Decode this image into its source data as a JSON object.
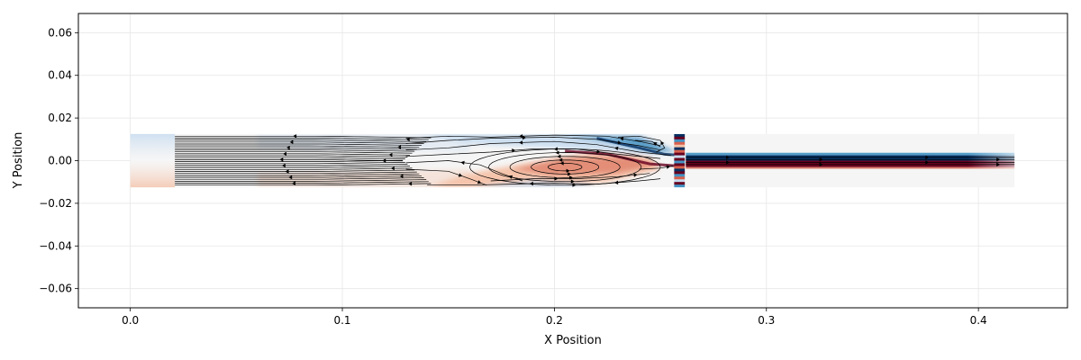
{
  "chart_data": {
    "type": "heatmap",
    "title": "",
    "xlabel": "X Position",
    "ylabel": "Y Position",
    "xlim": [
      -0.0245,
      0.442
    ],
    "ylim": [
      -0.069,
      0.069
    ],
    "xticks": [
      0.0,
      0.1,
      0.2,
      0.3,
      0.4
    ],
    "xtick_labels": [
      "0.0",
      "0.1",
      "0.2",
      "0.3",
      "0.4"
    ],
    "yticks": [
      -0.06,
      -0.04,
      -0.02,
      0.0,
      0.02,
      0.04,
      0.06
    ],
    "ytick_labels": [
      "−0.06",
      "−0.04",
      "−0.02",
      "0.00",
      "0.02",
      "0.04",
      "0.06"
    ],
    "grid": true,
    "colormap": "RdBu",
    "background_color": "#f5f5f5",
    "field_domain": {
      "x": [
        0.0,
        0.417
      ],
      "y": [
        -0.0125,
        0.0125
      ]
    },
    "streamline_domain": {
      "x": [
        0.021,
        0.262
      ],
      "y": [
        -0.0125,
        0.0125
      ]
    },
    "jet": {
      "x": [
        0.262,
        0.417
      ],
      "y_upper": 0.0025,
      "y_lower": -0.003
    },
    "vortex_center": [
      0.205,
      -0.003
    ],
    "colors": {
      "strong_red": "#67001f",
      "red": "#d6604d",
      "light_red": "#f4c2a8",
      "strong_blue": "#053061",
      "blue": "#4393c3",
      "light_blue": "#c6dbef",
      "streamline": "#000000"
    }
  }
}
